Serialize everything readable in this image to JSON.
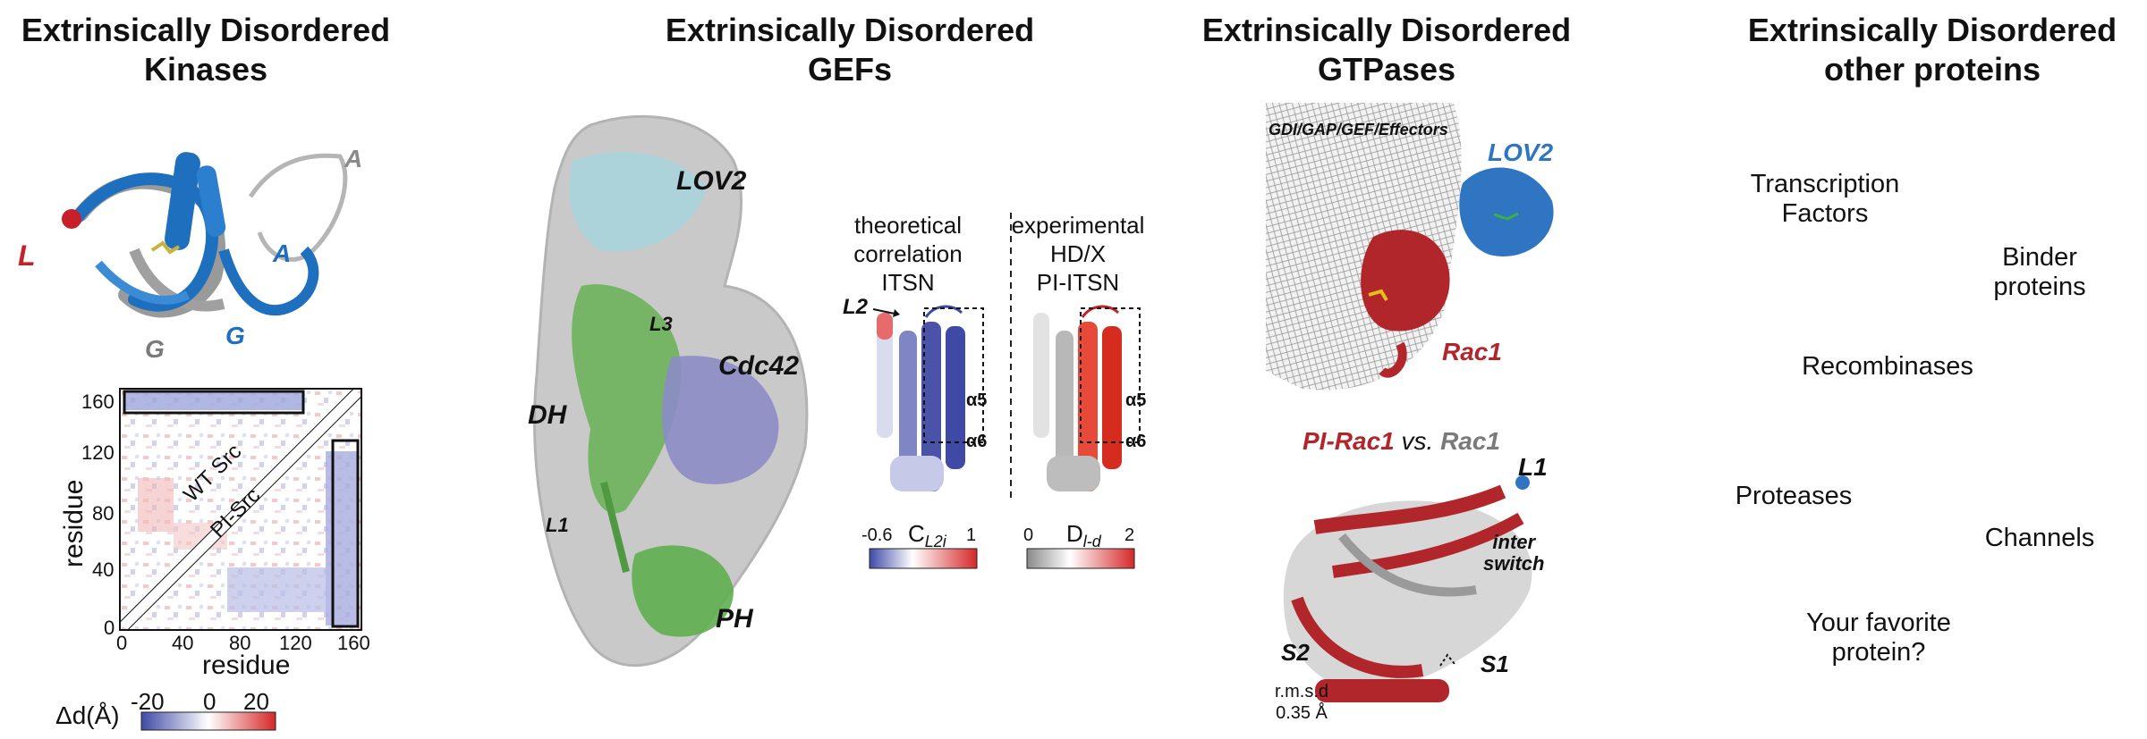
{
  "columns": [
    {
      "title_line1": "Extrinsically Disordered",
      "title_line2": "Kinases"
    },
    {
      "title_line1": "Extrinsically Disordered",
      "title_line2": "GEFs"
    },
    {
      "title_line1": "Extrinsically Disordered",
      "title_line2": "GTPases"
    },
    {
      "title_line1": "Extrinsically Disordered",
      "title_line2": "other proteins"
    }
  ],
  "kinases": {
    "labels": {
      "L": "L",
      "A_grey": "A",
      "A_blue": "A",
      "G_grey": "G",
      "G_blue": "G"
    },
    "matrix": {
      "ylabel": "residue",
      "xlabel": "residue",
      "y_ticks": [
        "160",
        "120",
        "80",
        "40",
        "0"
      ],
      "x_ticks": [
        "0",
        "40",
        "80",
        "120",
        "160"
      ],
      "upper_label": "WT Src",
      "lower_label": "PI-Src"
    },
    "colorbar": {
      "label": "Δd(Å)",
      "ticks": [
        "-20",
        "0",
        "20"
      ]
    }
  },
  "gefs": {
    "labels": {
      "lov2": "LOV2",
      "l3": "L3",
      "dh": "DH",
      "cdc42": "Cdc42",
      "l1": "L1",
      "ph": "PH"
    },
    "theoretical": {
      "line1": "theoretical",
      "line2": "correlation",
      "line3": "ITSN"
    },
    "experimental": {
      "line1": "experimental",
      "line2": "HD/X",
      "line3": "PI-ITSN"
    },
    "l2": "L2",
    "alpha5": "α5",
    "alpha6": "α6",
    "cb1": {
      "label_main": "C",
      "label_sub": "L2i",
      "min": "-0.6",
      "max": "1"
    },
    "cb2": {
      "label_main": "D",
      "label_sub": "l-d",
      "min": "0",
      "max": "2"
    }
  },
  "gtpases": {
    "top_label": "GDI/GAP/GEF/Effectors",
    "lov2": "LOV2",
    "rac1": "Rac1",
    "compare_a": "PI-Rac1",
    "compare_vs": "vs.",
    "compare_b": "Rac1",
    "l1": "L1",
    "inter_switch_1": "inter",
    "inter_switch_2": "switch",
    "s1": "S1",
    "s2": "S2",
    "rmsd_1": "r.m.s.d",
    "rmsd_2": "0.35 Å"
  },
  "others": {
    "items": [
      {
        "line1": "Transcription",
        "line2": "Factors"
      },
      {
        "line1": "Binder",
        "line2": "proteins"
      },
      {
        "line1": "Recombinases",
        "line2": ""
      },
      {
        "line1": "Proteases",
        "line2": ""
      },
      {
        "line1": "Channels",
        "line2": ""
      },
      {
        "line1": "Your favorite",
        "line2": "protein?"
      }
    ]
  },
  "colors": {
    "blue": "#1f6fbf",
    "grey": "#8a8a8a",
    "red": "#c8202a",
    "green": "#5fae4f",
    "lightblue": "#a9d3dc",
    "purple": "#8d8cc6",
    "darkred": "#b0262b"
  }
}
